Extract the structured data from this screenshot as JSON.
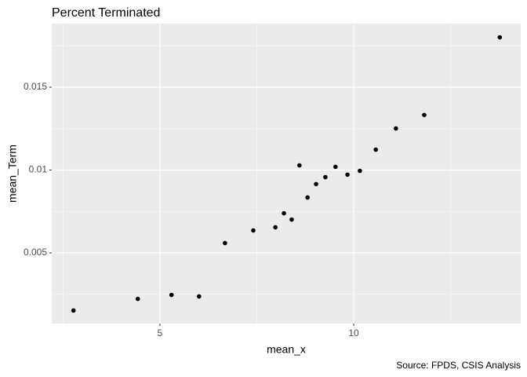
{
  "chart_data": {
    "type": "scatter",
    "title": "Percent Terminated",
    "x_label": "mean_x",
    "y_label": "mean_Term",
    "caption": "Source: FPDS, CSIS Analysis",
    "x": [
      2.77,
      4.43,
      5.3,
      6.01,
      6.68,
      7.41,
      7.98,
      8.2,
      8.4,
      8.6,
      8.81,
      9.03,
      9.27,
      9.53,
      9.84,
      10.16,
      10.57,
      11.09,
      11.82,
      13.77
    ],
    "values": [
      0.00152,
      0.00222,
      0.00246,
      0.00237,
      0.00559,
      0.00635,
      0.00654,
      0.00739,
      0.00701,
      0.01028,
      0.00834,
      0.00915,
      0.00957,
      0.01019,
      0.00972,
      0.00995,
      0.01123,
      0.01251,
      0.01332,
      0.01801
    ],
    "color": "#000000",
    "xlim": [
      2.21,
      14.31
    ],
    "ylim": [
      0.00073,
      0.01884
    ],
    "xticks": [
      5,
      10
    ],
    "yticks": [
      0.005,
      0.01,
      0.015
    ],
    "grid": true
  }
}
